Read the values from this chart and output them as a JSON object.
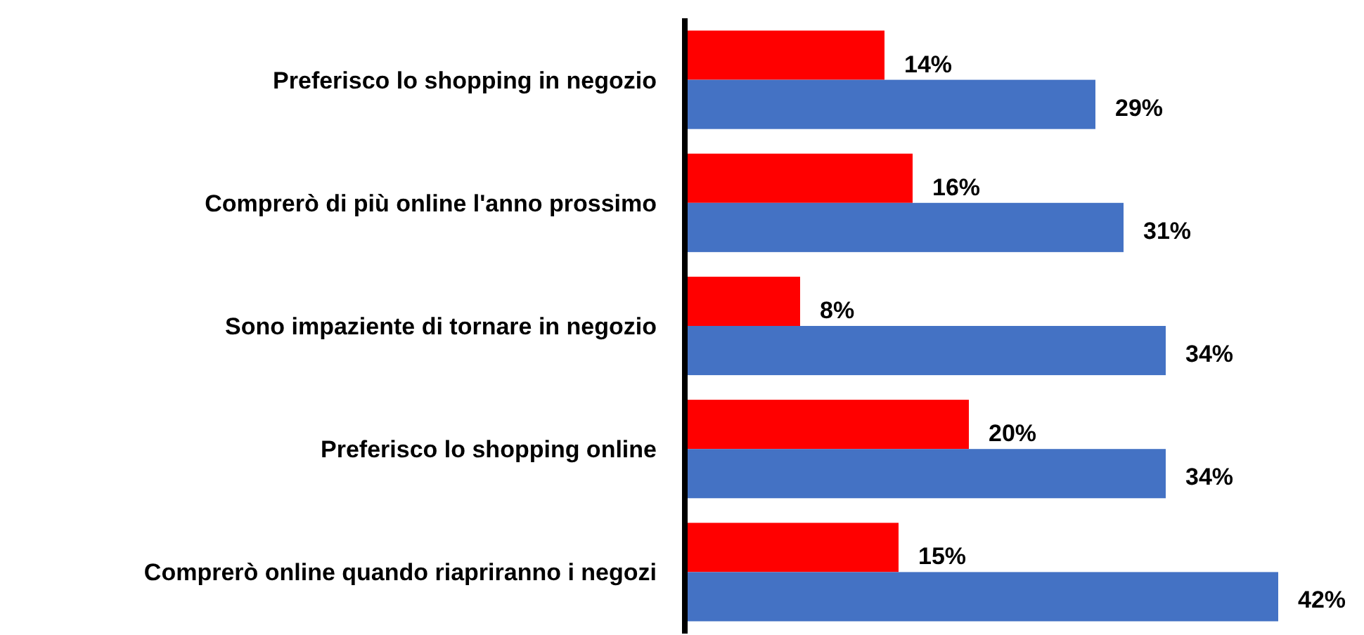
{
  "chart_data": {
    "type": "bar",
    "orientation": "horizontal",
    "categories": [
      "Preferisco lo shopping in negozio",
      "Comprerò di più online l'anno prossimo",
      "Sono impaziente di tornare in negozio",
      "Preferisco lo shopping online",
      "Comprerò online quando riapriranno i negozi"
    ],
    "series": [
      {
        "color": "#ff0000",
        "values": [
          14,
          16,
          8,
          20,
          15
        ],
        "value_labels": [
          "14%",
          "16%",
          "8%",
          "20%",
          "15%"
        ]
      },
      {
        "color": "#4472c4",
        "values": [
          29,
          31,
          34,
          34,
          42
        ],
        "value_labels": [
          "29%",
          "31%",
          "34%",
          "34%",
          "42%"
        ]
      }
    ],
    "tick_labels": "y"
  }
}
